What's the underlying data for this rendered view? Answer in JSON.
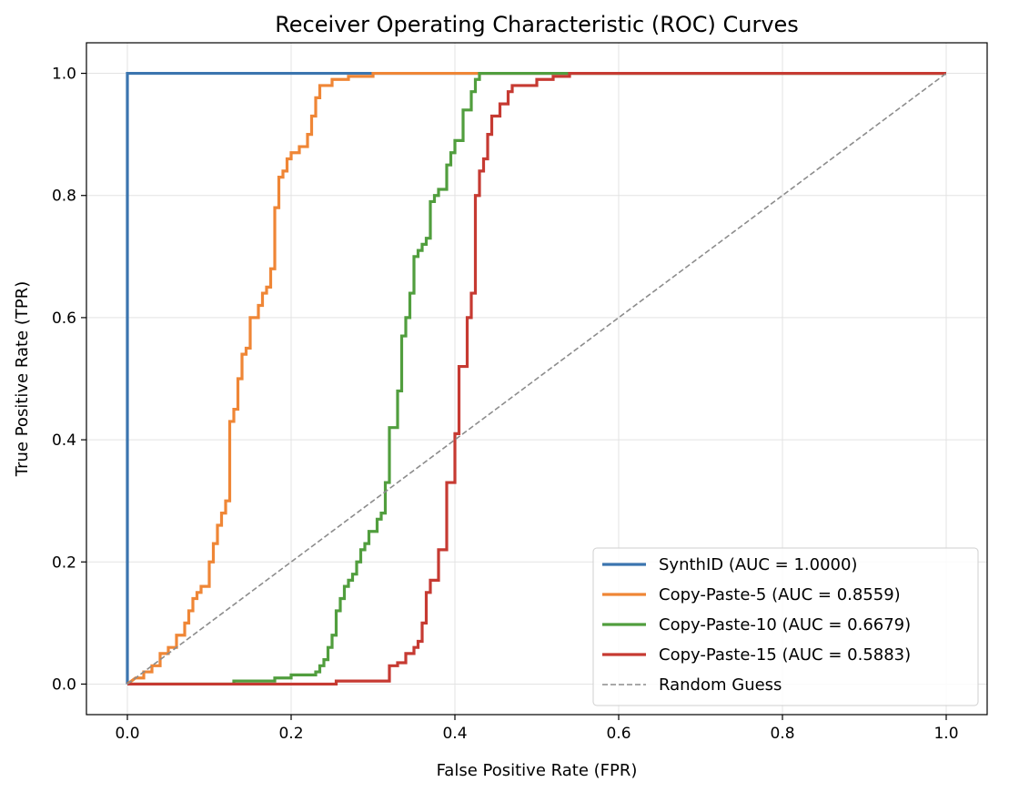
{
  "chart_data": {
    "type": "line",
    "title": "Receiver Operating Characteristic (ROC) Curves",
    "xlabel": "False Positive Rate (FPR)",
    "ylabel": "True Positive Rate (TPR)",
    "xlim": [
      -0.05,
      1.05
    ],
    "ylim": [
      -0.05,
      1.05
    ],
    "xticks": [
      0.0,
      0.2,
      0.4,
      0.6,
      0.8,
      1.0
    ],
    "yticks": [
      0.0,
      0.2,
      0.4,
      0.6,
      0.8,
      1.0
    ],
    "xtick_labels": [
      "0.0",
      "0.2",
      "0.4",
      "0.6",
      "0.8",
      "1.0"
    ],
    "ytick_labels": [
      "0.0",
      "0.2",
      "0.4",
      "0.6",
      "0.8",
      "1.0"
    ],
    "grid": true,
    "legend_position": "lower-right",
    "series": [
      {
        "name": "SynthID (AUC = 1.0000)",
        "color": "#3b75af",
        "dashed": false,
        "points": [
          [
            0,
            0
          ],
          [
            0,
            1
          ],
          [
            1,
            1
          ]
        ]
      },
      {
        "name": "Copy-Paste-5 (AUC = 0.8559)",
        "color": "#ef8636",
        "dashed": false,
        "points": [
          [
            0,
            0
          ],
          [
            0.01,
            0.01
          ],
          [
            0.02,
            0.01
          ],
          [
            0.02,
            0.02
          ],
          [
            0.03,
            0.02
          ],
          [
            0.03,
            0.03
          ],
          [
            0.04,
            0.03
          ],
          [
            0.04,
            0.05
          ],
          [
            0.05,
            0.05
          ],
          [
            0.05,
            0.06
          ],
          [
            0.06,
            0.06
          ],
          [
            0.06,
            0.08
          ],
          [
            0.07,
            0.08
          ],
          [
            0.07,
            0.1
          ],
          [
            0.075,
            0.1
          ],
          [
            0.075,
            0.12
          ],
          [
            0.08,
            0.12
          ],
          [
            0.08,
            0.14
          ],
          [
            0.085,
            0.14
          ],
          [
            0.085,
            0.15
          ],
          [
            0.09,
            0.15
          ],
          [
            0.09,
            0.16
          ],
          [
            0.1,
            0.16
          ],
          [
            0.1,
            0.2
          ],
          [
            0.105,
            0.2
          ],
          [
            0.105,
            0.23
          ],
          [
            0.11,
            0.23
          ],
          [
            0.11,
            0.26
          ],
          [
            0.115,
            0.26
          ],
          [
            0.115,
            0.28
          ],
          [
            0.12,
            0.28
          ],
          [
            0.12,
            0.3
          ],
          [
            0.125,
            0.3
          ],
          [
            0.125,
            0.43
          ],
          [
            0.13,
            0.43
          ],
          [
            0.13,
            0.45
          ],
          [
            0.135,
            0.45
          ],
          [
            0.135,
            0.5
          ],
          [
            0.14,
            0.5
          ],
          [
            0.14,
            0.54
          ],
          [
            0.145,
            0.54
          ],
          [
            0.145,
            0.55
          ],
          [
            0.15,
            0.55
          ],
          [
            0.15,
            0.6
          ],
          [
            0.16,
            0.6
          ],
          [
            0.16,
            0.62
          ],
          [
            0.165,
            0.62
          ],
          [
            0.165,
            0.64
          ],
          [
            0.17,
            0.64
          ],
          [
            0.17,
            0.65
          ],
          [
            0.175,
            0.65
          ],
          [
            0.175,
            0.68
          ],
          [
            0.18,
            0.68
          ],
          [
            0.18,
            0.78
          ],
          [
            0.185,
            0.78
          ],
          [
            0.185,
            0.83
          ],
          [
            0.19,
            0.83
          ],
          [
            0.19,
            0.84
          ],
          [
            0.195,
            0.84
          ],
          [
            0.195,
            0.86
          ],
          [
            0.2,
            0.86
          ],
          [
            0.2,
            0.87
          ],
          [
            0.21,
            0.87
          ],
          [
            0.21,
            0.88
          ],
          [
            0.22,
            0.88
          ],
          [
            0.22,
            0.9
          ],
          [
            0.225,
            0.9
          ],
          [
            0.225,
            0.93
          ],
          [
            0.23,
            0.93
          ],
          [
            0.23,
            0.96
          ],
          [
            0.235,
            0.96
          ],
          [
            0.235,
            0.98
          ],
          [
            0.25,
            0.98
          ],
          [
            0.25,
            0.99
          ],
          [
            0.27,
            0.99
          ],
          [
            0.27,
            0.995
          ],
          [
            0.3,
            0.995
          ],
          [
            0.3,
            1
          ],
          [
            1,
            1
          ]
        ]
      },
      {
        "name": "Copy-Paste-10 (AUC = 0.6679)",
        "color": "#519e3e",
        "dashed": false,
        "points": [
          [
            0,
            0
          ],
          [
            0.13,
            0
          ],
          [
            0.13,
            0.005
          ],
          [
            0.18,
            0.005
          ],
          [
            0.18,
            0.01
          ],
          [
            0.2,
            0.01
          ],
          [
            0.2,
            0.015
          ],
          [
            0.23,
            0.015
          ],
          [
            0.23,
            0.02
          ],
          [
            0.235,
            0.02
          ],
          [
            0.235,
            0.03
          ],
          [
            0.24,
            0.03
          ],
          [
            0.24,
            0.04
          ],
          [
            0.245,
            0.04
          ],
          [
            0.245,
            0.06
          ],
          [
            0.25,
            0.06
          ],
          [
            0.25,
            0.08
          ],
          [
            0.255,
            0.08
          ],
          [
            0.255,
            0.12
          ],
          [
            0.26,
            0.12
          ],
          [
            0.26,
            0.14
          ],
          [
            0.265,
            0.14
          ],
          [
            0.265,
            0.16
          ],
          [
            0.27,
            0.16
          ],
          [
            0.27,
            0.17
          ],
          [
            0.275,
            0.17
          ],
          [
            0.275,
            0.18
          ],
          [
            0.28,
            0.18
          ],
          [
            0.28,
            0.2
          ],
          [
            0.285,
            0.2
          ],
          [
            0.285,
            0.22
          ],
          [
            0.29,
            0.22
          ],
          [
            0.29,
            0.23
          ],
          [
            0.295,
            0.23
          ],
          [
            0.295,
            0.25
          ],
          [
            0.305,
            0.25
          ],
          [
            0.305,
            0.27
          ],
          [
            0.31,
            0.27
          ],
          [
            0.31,
            0.28
          ],
          [
            0.315,
            0.28
          ],
          [
            0.315,
            0.33
          ],
          [
            0.32,
            0.33
          ],
          [
            0.32,
            0.42
          ],
          [
            0.33,
            0.42
          ],
          [
            0.33,
            0.48
          ],
          [
            0.335,
            0.48
          ],
          [
            0.335,
            0.57
          ],
          [
            0.34,
            0.57
          ],
          [
            0.34,
            0.6
          ],
          [
            0.345,
            0.6
          ],
          [
            0.345,
            0.64
          ],
          [
            0.35,
            0.64
          ],
          [
            0.35,
            0.7
          ],
          [
            0.355,
            0.7
          ],
          [
            0.355,
            0.71
          ],
          [
            0.36,
            0.71
          ],
          [
            0.36,
            0.72
          ],
          [
            0.365,
            0.72
          ],
          [
            0.365,
            0.73
          ],
          [
            0.37,
            0.73
          ],
          [
            0.37,
            0.79
          ],
          [
            0.375,
            0.79
          ],
          [
            0.375,
            0.8
          ],
          [
            0.38,
            0.8
          ],
          [
            0.38,
            0.81
          ],
          [
            0.39,
            0.81
          ],
          [
            0.39,
            0.85
          ],
          [
            0.395,
            0.85
          ],
          [
            0.395,
            0.87
          ],
          [
            0.4,
            0.87
          ],
          [
            0.4,
            0.89
          ],
          [
            0.41,
            0.89
          ],
          [
            0.41,
            0.94
          ],
          [
            0.42,
            0.94
          ],
          [
            0.42,
            0.97
          ],
          [
            0.425,
            0.97
          ],
          [
            0.425,
            0.99
          ],
          [
            0.43,
            0.99
          ],
          [
            0.43,
            1
          ],
          [
            1,
            1
          ]
        ]
      },
      {
        "name": "Copy-Paste-15 (AUC = 0.5883)",
        "color": "#c63a32",
        "dashed": false,
        "points": [
          [
            0,
            0
          ],
          [
            0.255,
            0
          ],
          [
            0.255,
            0.005
          ],
          [
            0.32,
            0.005
          ],
          [
            0.32,
            0.03
          ],
          [
            0.33,
            0.03
          ],
          [
            0.33,
            0.035
          ],
          [
            0.34,
            0.035
          ],
          [
            0.34,
            0.05
          ],
          [
            0.35,
            0.05
          ],
          [
            0.35,
            0.06
          ],
          [
            0.355,
            0.06
          ],
          [
            0.355,
            0.07
          ],
          [
            0.36,
            0.07
          ],
          [
            0.36,
            0.1
          ],
          [
            0.365,
            0.1
          ],
          [
            0.365,
            0.15
          ],
          [
            0.37,
            0.15
          ],
          [
            0.37,
            0.17
          ],
          [
            0.38,
            0.17
          ],
          [
            0.38,
            0.22
          ],
          [
            0.39,
            0.22
          ],
          [
            0.39,
            0.33
          ],
          [
            0.4,
            0.33
          ],
          [
            0.4,
            0.41
          ],
          [
            0.405,
            0.41
          ],
          [
            0.405,
            0.52
          ],
          [
            0.415,
            0.52
          ],
          [
            0.415,
            0.6
          ],
          [
            0.42,
            0.6
          ],
          [
            0.42,
            0.64
          ],
          [
            0.425,
            0.64
          ],
          [
            0.425,
            0.8
          ],
          [
            0.43,
            0.8
          ],
          [
            0.43,
            0.84
          ],
          [
            0.435,
            0.84
          ],
          [
            0.435,
            0.86
          ],
          [
            0.44,
            0.86
          ],
          [
            0.44,
            0.9
          ],
          [
            0.445,
            0.9
          ],
          [
            0.445,
            0.93
          ],
          [
            0.455,
            0.93
          ],
          [
            0.455,
            0.95
          ],
          [
            0.465,
            0.95
          ],
          [
            0.465,
            0.97
          ],
          [
            0.47,
            0.97
          ],
          [
            0.47,
            0.98
          ],
          [
            0.5,
            0.98
          ],
          [
            0.5,
            0.99
          ],
          [
            0.52,
            0.99
          ],
          [
            0.52,
            0.995
          ],
          [
            0.54,
            0.995
          ],
          [
            0.54,
            1
          ],
          [
            1,
            1
          ]
        ]
      },
      {
        "name": "Random Guess",
        "color": "#8c8c8c",
        "dashed": true,
        "points": [
          [
            0,
            0
          ],
          [
            1,
            1
          ]
        ]
      }
    ]
  }
}
